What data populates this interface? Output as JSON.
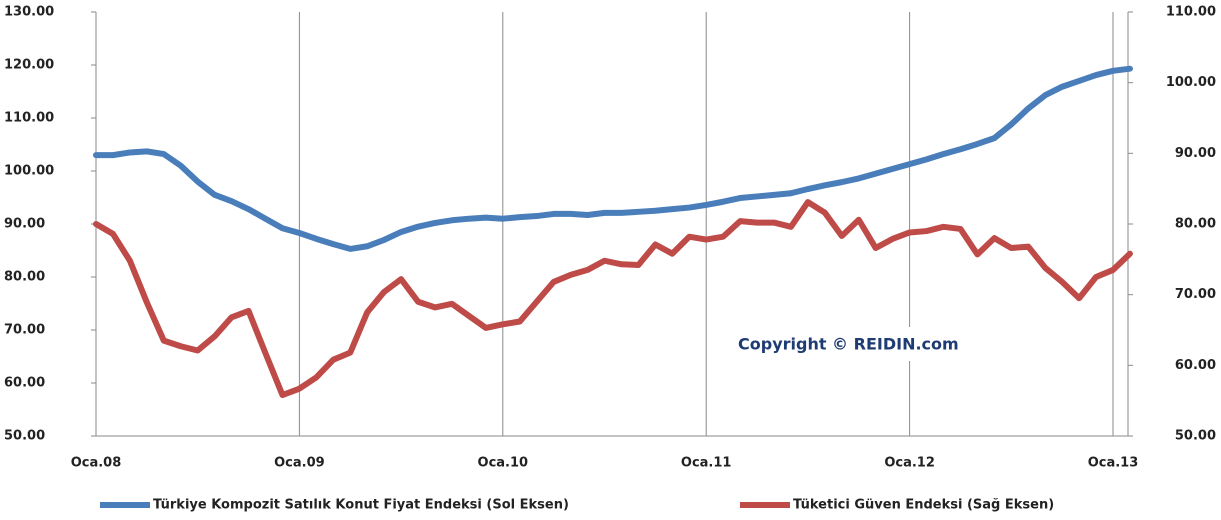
{
  "chart_data": {
    "type": "line",
    "categories": [
      "Oca.08",
      null,
      null,
      null,
      null,
      null,
      null,
      null,
      null,
      null,
      null,
      null,
      "Oca.09",
      null,
      null,
      null,
      null,
      null,
      null,
      null,
      null,
      null,
      null,
      null,
      "Oca.10",
      null,
      null,
      null,
      null,
      null,
      null,
      null,
      null,
      null,
      null,
      null,
      "Oca.11",
      null,
      null,
      null,
      null,
      null,
      null,
      null,
      null,
      null,
      null,
      null,
      "Oca.12",
      null,
      null,
      null,
      null,
      null,
      null,
      null,
      null,
      null,
      null,
      null,
      "Oca.13",
      null
    ],
    "series": [
      {
        "name": "Türkiye Kompozit Satılık Konut Fiyat Endeksi (Sol Eksen)",
        "color": "#4a7ebb",
        "axis": "y",
        "values": [
          103,
          103,
          103.5,
          103.7,
          103.2,
          101,
          98,
          95.5,
          94.3,
          92.8,
          91,
          89.2,
          88.3,
          87.2,
          86.2,
          85.3,
          85.8,
          87,
          88.5,
          89.5,
          90.2,
          90.7,
          91,
          91.2,
          91,
          91.3,
          91.5,
          91.9,
          91.9,
          91.7,
          92.1,
          92.1,
          92.3,
          92.5,
          92.8,
          93.1,
          93.6,
          94.2,
          94.9,
          95.2,
          95.5,
          95.8,
          96.6,
          97.3,
          97.9,
          98.6,
          99.5,
          100.4,
          101.3,
          102.2,
          103.2,
          104.1,
          105.1,
          106.2,
          108.8,
          111.8,
          114.3,
          115.9,
          117,
          118.1,
          118.9,
          119.3
        ]
      },
      {
        "name": "Tüketici Güven Endeksi (Sağ Eksen)",
        "color": "#be4b48",
        "axis": "y2",
        "values": [
          80,
          78.6,
          74.8,
          68.9,
          63.5,
          62.7,
          62.1,
          64.1,
          66.8,
          67.7,
          61.7,
          55.8,
          56.7,
          58.3,
          60.8,
          61.8,
          67.5,
          70.4,
          72.2,
          69,
          68.2,
          68.7,
          67,
          65.3,
          65.8,
          66.2,
          69,
          71.8,
          72.8,
          73.5,
          74.8,
          74.3,
          74.2,
          77.1,
          75.8,
          78.2,
          77.8,
          78.2,
          80.4,
          80.2,
          80.2,
          79.6,
          83.1,
          81.6,
          78.3,
          80.6,
          76.6,
          77.9,
          78.8,
          79,
          79.6,
          79.3,
          75.7,
          78,
          76.6,
          76.8,
          73.8,
          71.8,
          69.5,
          72.5,
          73.5,
          75.8
        ]
      }
    ],
    "ylim": [
      50,
      130
    ],
    "yticks": [
      {
        "value": 50,
        "label": "50.00"
      },
      {
        "value": 60,
        "label": "60.00"
      },
      {
        "value": 70,
        "label": "70.00"
      },
      {
        "value": 80,
        "label": "80.00"
      },
      {
        "value": 90,
        "label": "90.00"
      },
      {
        "value": 100,
        "label": "100.00"
      },
      {
        "value": 110,
        "label": "110.00"
      },
      {
        "value": 120,
        "label": "120.00"
      },
      {
        "value": 130,
        "label": "130.00"
      }
    ],
    "y2lim": [
      50,
      110
    ],
    "y2ticks": [
      {
        "value": 50,
        "label": "50.00"
      },
      {
        "value": 60,
        "label": "60.00"
      },
      {
        "value": 70,
        "label": "70.00"
      },
      {
        "value": 80,
        "label": "80.00"
      },
      {
        "value": 90,
        "label": "90.00"
      },
      {
        "value": 100,
        "label": "100.00"
      },
      {
        "value": 110,
        "label": "110.00"
      }
    ],
    "xgrid": true,
    "annotation": "Copyright © REIDIN.com",
    "legend": "bottom"
  }
}
